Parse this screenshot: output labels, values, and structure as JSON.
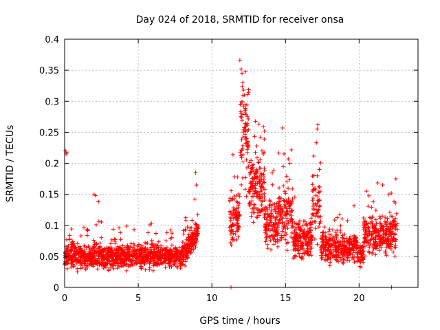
{
  "chart_data": {
    "type": "scatter",
    "title": "Day 024 of 2018, SRMTID for receiver onsa",
    "xlabel": "GPS time / hours",
    "ylabel": "SRMTID / TECUs",
    "xlim": [
      0,
      24
    ],
    "ylim": [
      0,
      0.4
    ],
    "xticks": [
      "0",
      "5",
      "10",
      "15",
      "20"
    ],
    "xtick_values": [
      0,
      5,
      10,
      15,
      20
    ],
    "yticks": [
      "0",
      "0.05",
      "0.1",
      "0.15",
      "0.2",
      "0.25",
      "0.3",
      "0.35",
      "0.4"
    ],
    "ytick_values": [
      0,
      0.05,
      0.1,
      0.15,
      0.2,
      0.25,
      0.3,
      0.35,
      0.4
    ],
    "grid": true,
    "marker": "+",
    "color": "#ff0000",
    "series": [
      {
        "name": "SRMTID",
        "segments": [
          {
            "x_start": 0.0,
            "x_end": 9.1,
            "baseline": 0.05,
            "spread": 0.025,
            "rise_to": 0.09
          },
          {
            "x_start": 11.2,
            "x_end": 22.6,
            "baseline": 0.07,
            "spread": 0.03
          }
        ],
        "notable_points": [
          {
            "x": 0.05,
            "y": 0.22
          },
          {
            "x": 0.1,
            "y": 0.215
          },
          {
            "x": 0.15,
            "y": 0.218
          },
          {
            "x": 2.0,
            "y": 0.15
          },
          {
            "x": 2.1,
            "y": 0.148
          },
          {
            "x": 2.3,
            "y": 0.138
          },
          {
            "x": 8.9,
            "y": 0.185
          },
          {
            "x": 8.95,
            "y": 0.165
          },
          {
            "x": 8.85,
            "y": 0.142
          },
          {
            "x": 11.9,
            "y": 0.366
          },
          {
            "x": 12.0,
            "y": 0.352
          },
          {
            "x": 12.05,
            "y": 0.345
          },
          {
            "x": 12.1,
            "y": 0.33
          },
          {
            "x": 12.15,
            "y": 0.318
          },
          {
            "x": 12.2,
            "y": 0.31
          },
          {
            "x": 12.25,
            "y": 0.295
          },
          {
            "x": 12.0,
            "y": 0.28
          },
          {
            "x": 11.95,
            "y": 0.275
          },
          {
            "x": 12.35,
            "y": 0.262
          },
          {
            "x": 12.4,
            "y": 0.252
          },
          {
            "x": 12.1,
            "y": 0.242
          },
          {
            "x": 12.3,
            "y": 0.232
          },
          {
            "x": 13.2,
            "y": 0.263
          },
          {
            "x": 13.4,
            "y": 0.22
          },
          {
            "x": 13.5,
            "y": 0.215
          },
          {
            "x": 14.8,
            "y": 0.257
          },
          {
            "x": 14.9,
            "y": 0.215
          },
          {
            "x": 15.1,
            "y": 0.17
          },
          {
            "x": 15.3,
            "y": 0.2
          },
          {
            "x": 17.2,
            "y": 0.262
          },
          {
            "x": 17.15,
            "y": 0.255
          },
          {
            "x": 17.1,
            "y": 0.233
          },
          {
            "x": 17.3,
            "y": 0.19
          },
          {
            "x": 20.5,
            "y": 0.155
          },
          {
            "x": 21.6,
            "y": 0.165
          },
          {
            "x": 22.5,
            "y": 0.175
          },
          {
            "x": 11.3,
            "y": 0.0
          },
          {
            "x": 22.2,
            "y": 0.0
          }
        ]
      }
    ]
  }
}
